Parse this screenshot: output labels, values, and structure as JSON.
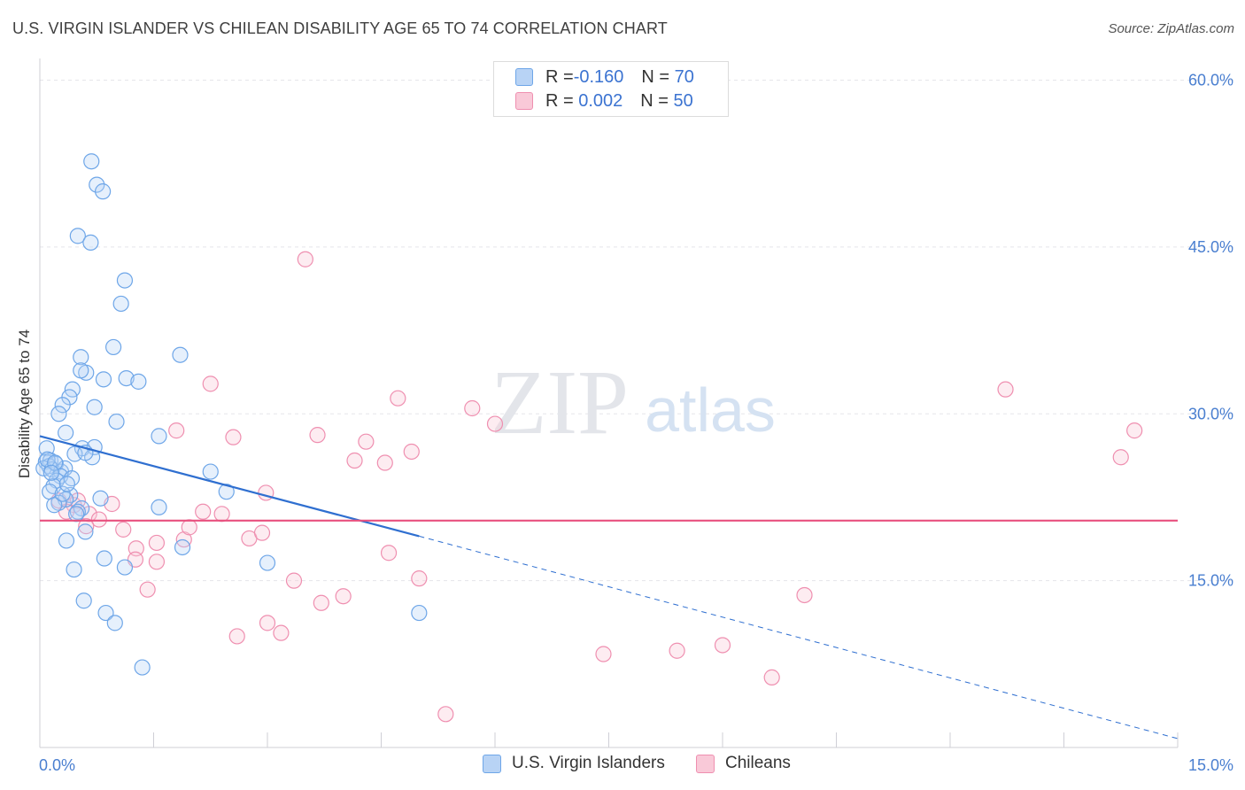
{
  "header": {
    "title": "U.S. VIRGIN ISLANDER VS CHILEAN DISABILITY AGE 65 TO 74 CORRELATION CHART",
    "source": "Source: ZipAtlas.com"
  },
  "watermark": {
    "zip": "ZIP",
    "atlas": "atlas"
  },
  "colors": {
    "blue": "#6ea6e8",
    "blue_fill": "#b8d3f5",
    "blue_line": "#2f6fd0",
    "pink": "#ef8fb0",
    "pink_fill": "#f9c9d8",
    "pink_line": "#e8507e",
    "tick_text": "#4a7fd0",
    "grid": "#e5e5ea"
  },
  "legend": {
    "rows": [
      {
        "r_label": "R = ",
        "r_value": "-0.160",
        "n_label": "N = ",
        "n_value": "70"
      },
      {
        "r_label": "R = ",
        "r_value": " 0.002",
        "n_label": "N = ",
        "n_value": "50"
      }
    ]
  },
  "bottom_legend": [
    {
      "label": "U.S. Virgin Islanders"
    },
    {
      "label": "Chileans"
    }
  ],
  "chart_data": {
    "type": "scatter",
    "title": "U.S. VIRGIN ISLANDER VS CHILEAN DISABILITY AGE 65 TO 74 CORRELATION CHART",
    "xlabel": "",
    "ylabel": "Disability Age 65 to 74",
    "xlim": [
      0,
      15
    ],
    "ylim": [
      0,
      61
    ],
    "x_tick_labels": [
      "0.0%",
      "15.0%"
    ],
    "y_ticks": [
      15,
      30,
      45,
      60
    ],
    "y_tick_labels": [
      "15.0%",
      "30.0%",
      "45.0%",
      "60.0%"
    ],
    "grid": true,
    "legend_position": "top-center",
    "series": [
      {
        "name": "U.S. Virgin Islanders",
        "r": -0.16,
        "n": 70,
        "trend": {
          "x": [
            0,
            5
          ],
          "y": [
            28.0,
            19.0
          ],
          "dashed_to": [
            15,
            0.8
          ]
        },
        "points": [
          [
            0.68,
            52.7
          ],
          [
            0.75,
            50.6
          ],
          [
            0.83,
            50.0
          ],
          [
            0.5,
            46.0
          ],
          [
            0.67,
            45.4
          ],
          [
            1.12,
            42.0
          ],
          [
            1.07,
            39.9
          ],
          [
            0.97,
            36.0
          ],
          [
            1.85,
            35.3
          ],
          [
            0.54,
            35.1
          ],
          [
            0.61,
            33.7
          ],
          [
            0.54,
            33.9
          ],
          [
            0.84,
            33.1
          ],
          [
            1.14,
            33.2
          ],
          [
            1.3,
            32.9
          ],
          [
            0.43,
            32.2
          ],
          [
            0.39,
            31.5
          ],
          [
            0.3,
            30.8
          ],
          [
            0.25,
            30.0
          ],
          [
            0.72,
            30.6
          ],
          [
            1.01,
            29.3
          ],
          [
            0.34,
            28.3
          ],
          [
            1.57,
            28.0
          ],
          [
            0.09,
            26.9
          ],
          [
            0.56,
            26.9
          ],
          [
            0.72,
            27.0
          ],
          [
            0.46,
            26.4
          ],
          [
            0.69,
            26.1
          ],
          [
            0.08,
            25.7
          ],
          [
            0.14,
            25.8
          ],
          [
            0.21,
            25.5
          ],
          [
            0.12,
            25.3
          ],
          [
            0.05,
            25.1
          ],
          [
            0.16,
            25.0
          ],
          [
            0.28,
            24.8
          ],
          [
            0.33,
            25.1
          ],
          [
            0.27,
            24.4
          ],
          [
            0.22,
            24.0
          ],
          [
            0.18,
            23.5
          ],
          [
            0.13,
            23.0
          ],
          [
            2.25,
            24.8
          ],
          [
            2.46,
            23.0
          ],
          [
            0.4,
            22.7
          ],
          [
            0.34,
            22.3
          ],
          [
            0.8,
            22.4
          ],
          [
            0.25,
            22.0
          ],
          [
            0.55,
            21.5
          ],
          [
            0.5,
            21.2
          ],
          [
            0.19,
            21.8
          ],
          [
            0.48,
            21.0
          ],
          [
            1.57,
            21.6
          ],
          [
            0.6,
            19.4
          ],
          [
            0.35,
            18.6
          ],
          [
            1.88,
            18.0
          ],
          [
            0.85,
            17.0
          ],
          [
            1.12,
            16.2
          ],
          [
            0.45,
            16.0
          ],
          [
            3.0,
            16.6
          ],
          [
            0.58,
            13.2
          ],
          [
            0.87,
            12.1
          ],
          [
            0.99,
            11.2
          ],
          [
            5.0,
            12.1
          ],
          [
            1.35,
            7.2
          ],
          [
            0.1,
            25.9
          ],
          [
            0.42,
            24.2
          ],
          [
            0.6,
            26.5
          ],
          [
            0.3,
            22.8
          ],
          [
            0.2,
            25.6
          ],
          [
            0.15,
            24.7
          ],
          [
            0.36,
            23.7
          ]
        ]
      },
      {
        "name": "Chileans",
        "r": 0.002,
        "n": 50,
        "trend": {
          "x": [
            0,
            15
          ],
          "y": [
            20.4,
            20.4
          ]
        },
        "points": [
          [
            3.5,
            43.9
          ],
          [
            2.25,
            32.7
          ],
          [
            4.72,
            31.4
          ],
          [
            5.7,
            30.5
          ],
          [
            6.0,
            29.1
          ],
          [
            12.73,
            32.2
          ],
          [
            14.43,
            28.5
          ],
          [
            1.8,
            28.5
          ],
          [
            2.55,
            27.9
          ],
          [
            3.66,
            28.1
          ],
          [
            4.3,
            27.5
          ],
          [
            4.9,
            26.6
          ],
          [
            4.15,
            25.8
          ],
          [
            4.55,
            25.6
          ],
          [
            14.25,
            26.1
          ],
          [
            0.25,
            22.2
          ],
          [
            0.45,
            21.8
          ],
          [
            0.35,
            21.2
          ],
          [
            0.5,
            22.2
          ],
          [
            0.65,
            21.0
          ],
          [
            0.78,
            20.5
          ],
          [
            0.61,
            19.9
          ],
          [
            0.95,
            21.9
          ],
          [
            1.1,
            19.6
          ],
          [
            2.15,
            21.2
          ],
          [
            2.4,
            21.0
          ],
          [
            2.98,
            22.9
          ],
          [
            1.27,
            17.9
          ],
          [
            1.54,
            18.4
          ],
          [
            1.9,
            18.7
          ],
          [
            1.97,
            19.8
          ],
          [
            2.76,
            18.8
          ],
          [
            2.93,
            19.3
          ],
          [
            1.54,
            16.7
          ],
          [
            1.26,
            16.9
          ],
          [
            4.6,
            17.5
          ],
          [
            5.0,
            15.2
          ],
          [
            3.35,
            15.0
          ],
          [
            1.42,
            14.2
          ],
          [
            3.71,
            13.0
          ],
          [
            4.0,
            13.6
          ],
          [
            10.08,
            13.7
          ],
          [
            3.0,
            11.2
          ],
          [
            3.18,
            10.3
          ],
          [
            2.6,
            10.0
          ],
          [
            7.43,
            8.4
          ],
          [
            8.4,
            8.7
          ],
          [
            9.0,
            9.2
          ],
          [
            9.65,
            6.3
          ],
          [
            5.35,
            3.0
          ]
        ]
      }
    ]
  }
}
